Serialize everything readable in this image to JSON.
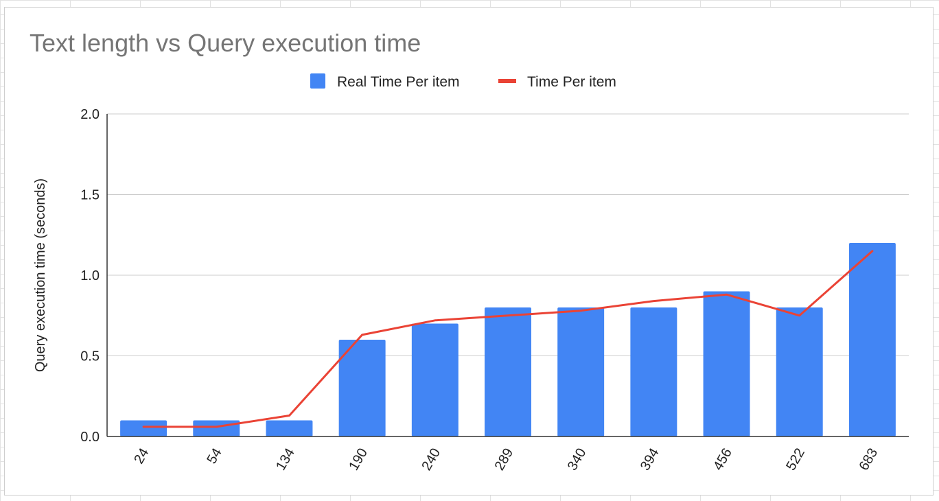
{
  "chart_data": {
    "type": "bar",
    "title": "Text length vs Query execution time",
    "xlabel": "",
    "ylabel": "Query execution time (seconds)",
    "categories": [
      "24",
      "54",
      "134",
      "190",
      "240",
      "289",
      "340",
      "394",
      "456",
      "522",
      "683"
    ],
    "ylim": [
      0,
      2
    ],
    "yticks": [
      "0.0",
      "0.5",
      "1.0",
      "1.5",
      "2.0"
    ],
    "grid": true,
    "legend_position": "top",
    "series": [
      {
        "name": "Real Time Per item",
        "type": "bar",
        "color": "#4285f4",
        "values": [
          0.1,
          0.1,
          0.1,
          0.6,
          0.7,
          0.8,
          0.8,
          0.8,
          0.9,
          0.8,
          1.2
        ]
      },
      {
        "name": "Time Per item",
        "type": "line",
        "color": "#ea4335",
        "values": [
          0.06,
          0.06,
          0.13,
          0.63,
          0.72,
          0.75,
          0.78,
          0.84,
          0.88,
          0.75,
          1.15
        ]
      }
    ]
  }
}
